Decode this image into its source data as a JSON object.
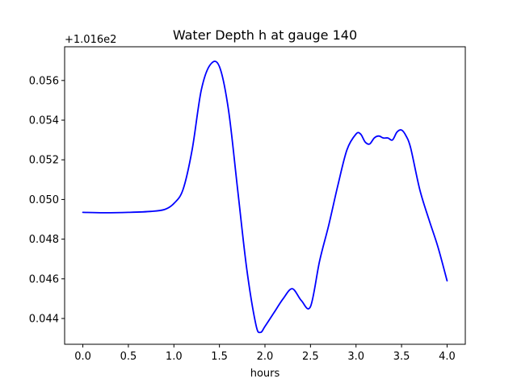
{
  "chart_data": {
    "type": "line",
    "title": "Water Depth h at gauge 140",
    "xlabel": "hours",
    "ylabel": "",
    "y_offset_text": "+1.016e2",
    "xlim": [
      -0.2,
      4.2
    ],
    "ylim": [
      0.0427,
      0.0577
    ],
    "x_ticks": [
      0.0,
      0.5,
      1.0,
      1.5,
      2.0,
      2.5,
      3.0,
      3.5,
      4.0
    ],
    "x_tick_labels": [
      "0.0",
      "0.5",
      "1.0",
      "1.5",
      "2.0",
      "2.5",
      "3.0",
      "3.5",
      "4.0"
    ],
    "y_ticks": [
      0.044,
      0.046,
      0.048,
      0.05,
      0.052,
      0.054,
      0.056
    ],
    "y_tick_labels": [
      "0.044",
      "0.046",
      "0.048",
      "0.050",
      "0.052",
      "0.054",
      "0.056"
    ],
    "grid": false,
    "series": [
      {
        "color": "#0000ff",
        "x": [
          0.0,
          0.25,
          0.5,
          0.75,
          0.9,
          1.0,
          1.1,
          1.2,
          1.3,
          1.4,
          1.5,
          1.6,
          1.7,
          1.8,
          1.9,
          1.95,
          2.0,
          2.1,
          2.2,
          2.3,
          2.4,
          2.5,
          2.6,
          2.7,
          2.8,
          2.9,
          3.0,
          3.05,
          3.1,
          3.15,
          3.2,
          3.25,
          3.3,
          3.35,
          3.4,
          3.45,
          3.5,
          3.55,
          3.6,
          3.7,
          3.8,
          3.9,
          4.0
        ],
        "y": [
          0.04935,
          0.04933,
          0.04935,
          0.0494,
          0.0495,
          0.0498,
          0.0505,
          0.0525,
          0.0555,
          0.0568,
          0.0567,
          0.0545,
          0.0505,
          0.0465,
          0.0437,
          0.0433,
          0.0436,
          0.0443,
          0.045,
          0.0455,
          0.0449,
          0.0446,
          0.0469,
          0.0487,
          0.0507,
          0.0525,
          0.0533,
          0.0533,
          0.0529,
          0.0528,
          0.0531,
          0.0532,
          0.0531,
          0.0531,
          0.053,
          0.0534,
          0.0535,
          0.0532,
          0.0526,
          0.0505,
          0.049,
          0.0476,
          0.0459
        ]
      }
    ]
  }
}
